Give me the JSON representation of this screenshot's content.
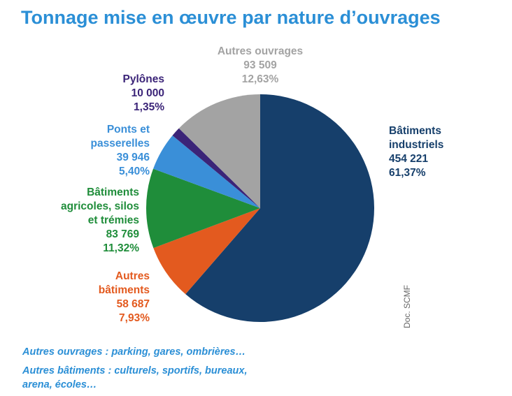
{
  "title": "Tonnage mise en œuvre par nature d’ouvrages",
  "chart_data": {
    "type": "pie",
    "start_angle_deg": 0,
    "direction": "clockwise",
    "slices": [
      {
        "name_lines": [
          "Bâtiments",
          "industriels"
        ],
        "value": "454 221",
        "percent": "61,37%",
        "pct": 61.37,
        "color": "#163f6b"
      },
      {
        "name_lines": [
          "Autres",
          "bâtiments"
        ],
        "value": "58 687",
        "percent": "7,93%",
        "pct": 7.93,
        "color": "#e35a1f"
      },
      {
        "name_lines": [
          "Bâtiments",
          "agricoles, silos",
          "et trémies"
        ],
        "value": "83 769",
        "percent": "11,32%",
        "pct": 11.32,
        "color": "#1f8d3a"
      },
      {
        "name_lines": [
          "Ponts et",
          "passerelles"
        ],
        "value": "39 946",
        "percent": "5,40%",
        "pct": 5.4,
        "color": "#3a8fd8"
      },
      {
        "name_lines": [
          "Pylônes"
        ],
        "value": "10 000",
        "percent": "1,35%",
        "pct": 1.35,
        "color": "#3b2478"
      },
      {
        "name_lines": [
          "Autres ouvrages"
        ],
        "value": "93 509",
        "percent": "12,63%",
        "pct": 12.63,
        "color": "#a3a3a3"
      }
    ]
  },
  "credit": "Doc. SCMF",
  "footnotes": [
    "Autres ouvrages : parking, gares, ombrières…",
    "Autres bâtiments : culturels, sportifs, bureaux,",
    "arena, écoles…"
  ]
}
